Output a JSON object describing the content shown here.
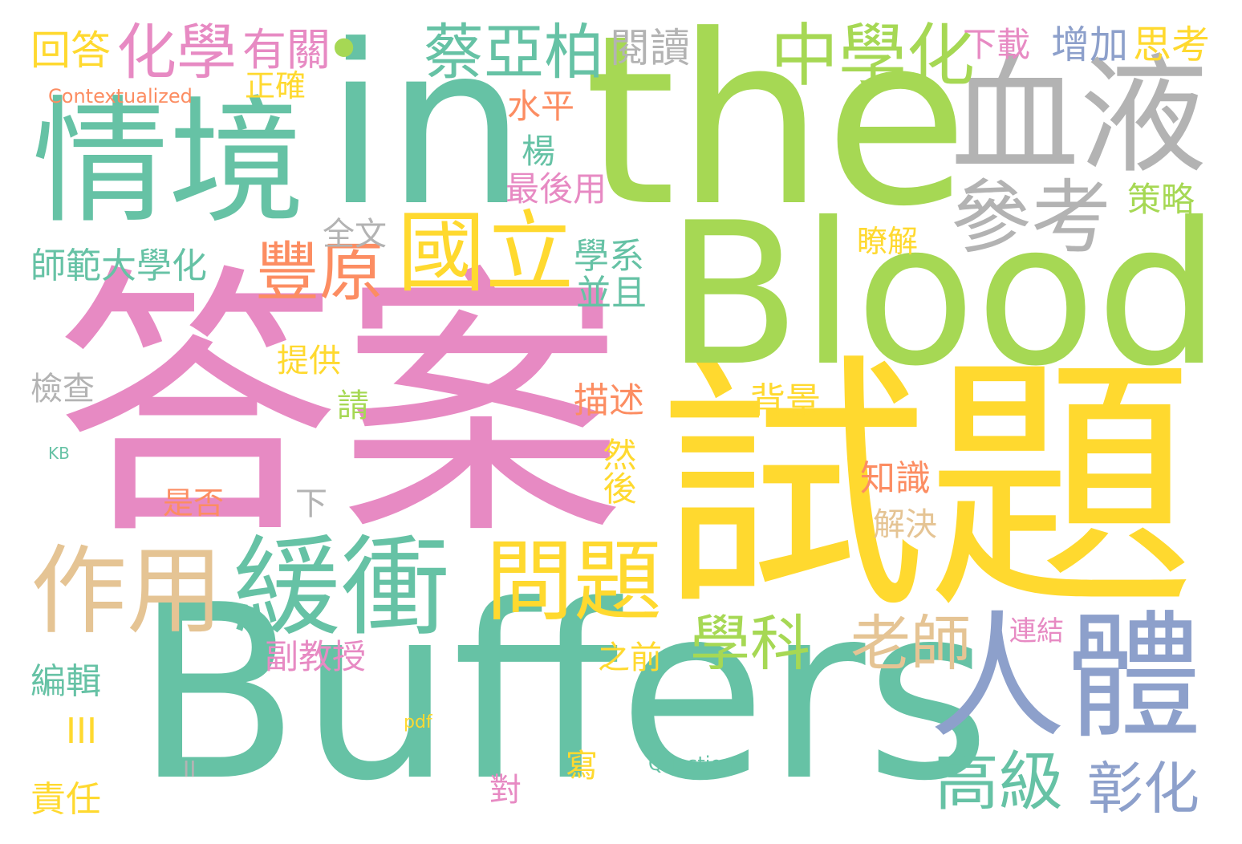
{
  "palette": {
    "teal": "#66c2a5",
    "orange": "#fc8d62",
    "blue": "#8da0cb",
    "pink": "#e78ac3",
    "green": "#a6d854",
    "yellow": "#ffd92f",
    "tan": "#e5c494",
    "gray": "#b3b3b3"
  },
  "words": [
    {
      "text": "答案",
      "color": "pink",
      "orientation": "horizontal"
    },
    {
      "text": "試題",
      "color": "yellow",
      "orientation": "horizontal"
    },
    {
      "text": "Buffers",
      "color": "teal",
      "orientation": "horizontal"
    },
    {
      "text": "the",
      "color": "green",
      "orientation": "horizontal"
    },
    {
      "text": "in",
      "color": "teal",
      "orientation": "horizontal"
    },
    {
      "text": "Blood",
      "color": "green",
      "orientation": "horizontal"
    },
    {
      "text": "情境",
      "color": "teal",
      "orientation": "horizontal"
    },
    {
      "text": "血液",
      "color": "gray",
      "orientation": "horizontal"
    },
    {
      "text": "人體",
      "color": "blue",
      "orientation": "horizontal"
    },
    {
      "text": "緩衝",
      "color": "teal",
      "orientation": "horizontal"
    },
    {
      "text": "作用",
      "color": "tan",
      "orientation": "horizontal"
    },
    {
      "text": "問題",
      "color": "yellow",
      "orientation": "horizontal"
    },
    {
      "text": "國立",
      "color": "yellow",
      "orientation": "horizontal"
    },
    {
      "text": "參考",
      "color": "gray",
      "orientation": "horizontal"
    },
    {
      "text": "中學化",
      "color": "green",
      "orientation": "horizontal"
    },
    {
      "text": "化學",
      "color": "pink",
      "orientation": "horizontal"
    },
    {
      "text": "蔡亞柏",
      "color": "teal",
      "orientation": "horizontal"
    },
    {
      "text": "豐原",
      "color": "orange",
      "orientation": "horizontal"
    },
    {
      "text": "高級",
      "color": "teal",
      "orientation": "horizontal"
    },
    {
      "text": "老師",
      "color": "tan",
      "orientation": "horizontal"
    },
    {
      "text": "學科",
      "color": "green",
      "orientation": "horizontal"
    },
    {
      "text": "彰化",
      "color": "blue",
      "orientation": "horizontal"
    },
    {
      "text": "有關",
      "color": "pink",
      "orientation": "horizontal"
    },
    {
      "text": "•",
      "color": "green",
      "orientation": "horizontal"
    },
    {
      "text": "回答",
      "color": "yellow",
      "orientation": "horizontal"
    },
    {
      "text": "閱讀",
      "color": "gray",
      "orientation": "horizontal"
    },
    {
      "text": "下載",
      "color": "pink",
      "orientation": "horizontal"
    },
    {
      "text": "增加",
      "color": "blue",
      "orientation": "horizontal"
    },
    {
      "text": "思考",
      "color": "yellow",
      "orientation": "horizontal"
    },
    {
      "text": "正確",
      "color": "yellow",
      "orientation": "horizontal"
    },
    {
      "text": "Contextualized",
      "color": "orange",
      "orientation": "horizontal"
    },
    {
      "text": "水平",
      "color": "orange",
      "orientation": "horizontal"
    },
    {
      "text": "楊",
      "color": "teal",
      "orientation": "horizontal"
    },
    {
      "text": "最後用",
      "color": "pink",
      "orientation": "horizontal"
    },
    {
      "text": "策略",
      "color": "green",
      "orientation": "horizontal"
    },
    {
      "text": "全文",
      "color": "gray",
      "orientation": "horizontal"
    },
    {
      "text": "師範大學化",
      "color": "teal",
      "orientation": "horizontal"
    },
    {
      "text": "學系",
      "color": "teal",
      "orientation": "horizontal"
    },
    {
      "text": "並且",
      "color": "teal",
      "orientation": "horizontal"
    },
    {
      "text": "瞭解",
      "color": "yellow",
      "orientation": "horizontal"
    },
    {
      "text": "提供",
      "color": "yellow",
      "orientation": "horizontal"
    },
    {
      "text": "檢查",
      "color": "gray",
      "orientation": "horizontal"
    },
    {
      "text": "請",
      "color": "green",
      "orientation": "horizontal"
    },
    {
      "text": "描述",
      "color": "orange",
      "orientation": "horizontal"
    },
    {
      "text": "背景",
      "color": "yellow",
      "orientation": "horizontal"
    },
    {
      "text": "KB",
      "color": "teal",
      "orientation": "horizontal"
    },
    {
      "text": "然後",
      "color": "yellow",
      "orientation": "vertical"
    },
    {
      "text": "知識",
      "color": "orange",
      "orientation": "horizontal"
    },
    {
      "text": "是否",
      "color": "orange",
      "orientation": "horizontal"
    },
    {
      "text": "下",
      "color": "gray",
      "orientation": "horizontal"
    },
    {
      "text": "解決",
      "color": "tan",
      "orientation": "horizontal"
    },
    {
      "text": "副教授",
      "color": "pink",
      "orientation": "horizontal"
    },
    {
      "text": "之前",
      "color": "yellow",
      "orientation": "horizontal"
    },
    {
      "text": "連結",
      "color": "pink",
      "orientation": "horizontal"
    },
    {
      "text": "編輯",
      "color": "teal",
      "orientation": "horizontal"
    },
    {
      "text": "III",
      "color": "yellow",
      "orientation": "horizontal"
    },
    {
      "text": "pdf",
      "color": "yellow",
      "orientation": "horizontal"
    },
    {
      "text": "寫",
      "color": "yellow",
      "orientation": "horizontal"
    },
    {
      "text": "Question",
      "color": "teal",
      "orientation": "horizontal"
    },
    {
      "text": "II",
      "color": "gray",
      "orientation": "horizontal"
    },
    {
      "text": "對",
      "color": "pink",
      "orientation": "horizontal"
    },
    {
      "text": "責任",
      "color": "yellow",
      "orientation": "horizontal"
    }
  ]
}
